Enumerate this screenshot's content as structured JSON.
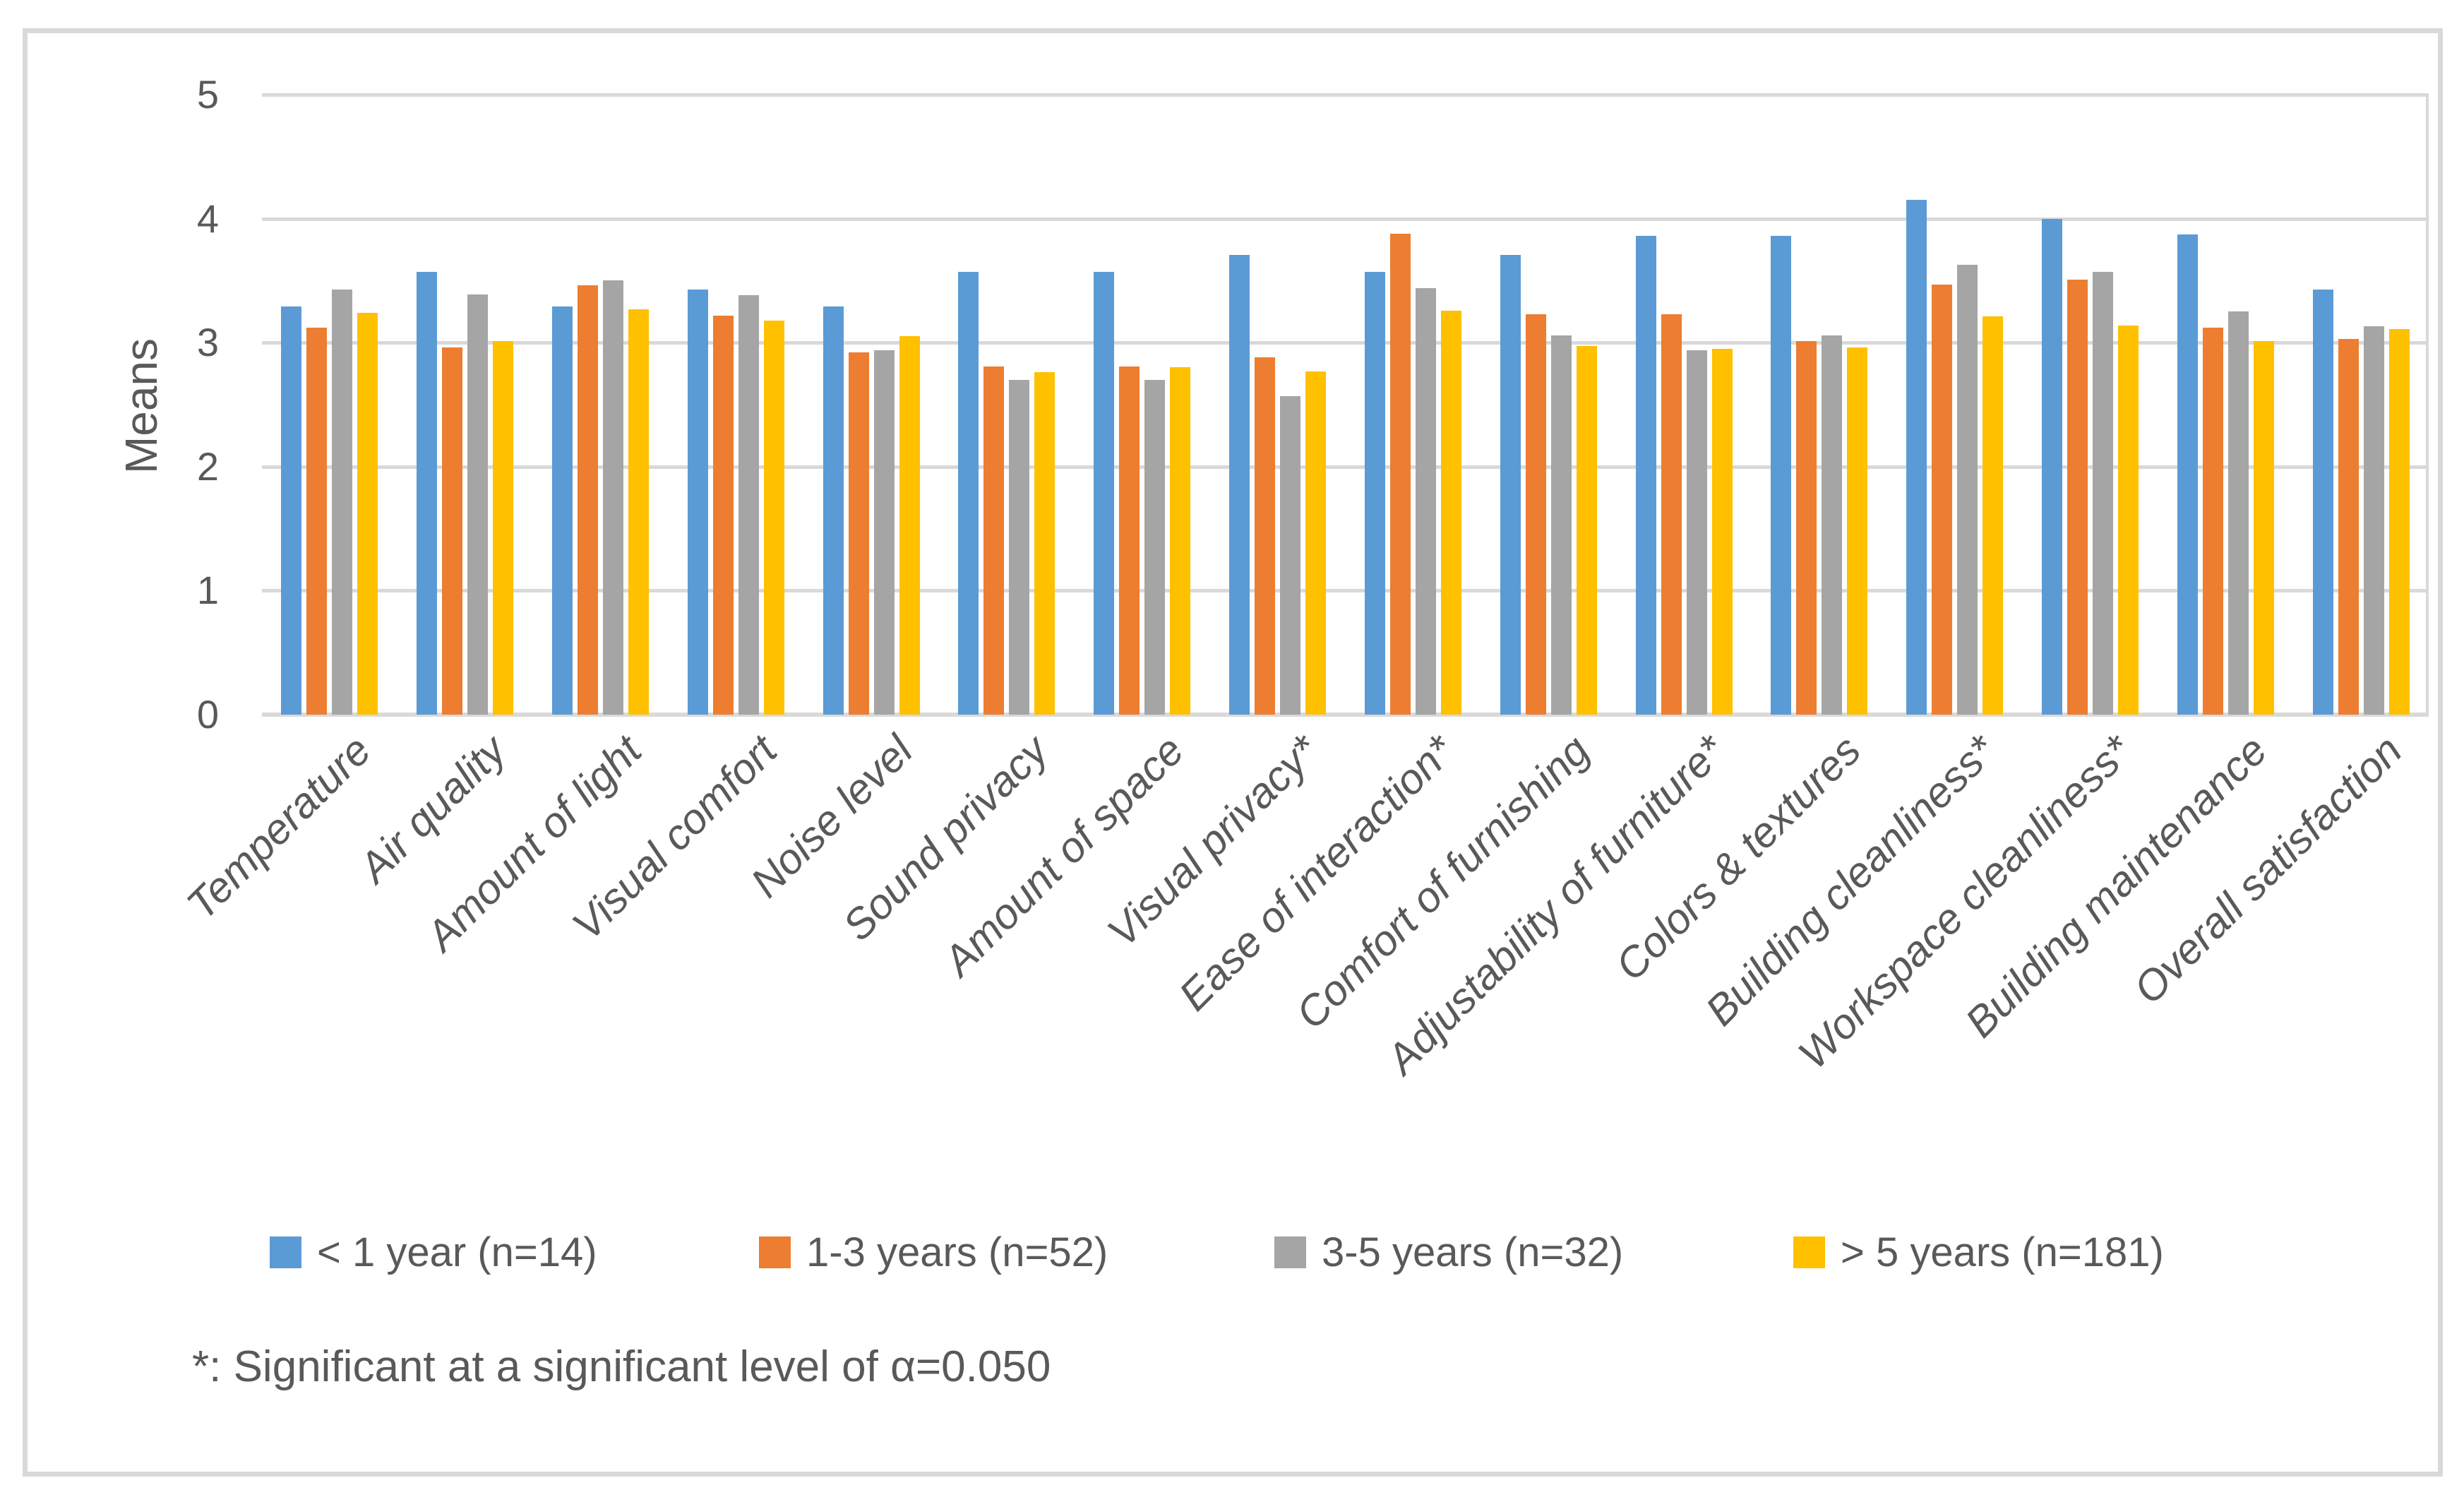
{
  "chart_data": {
    "type": "bar",
    "title": "",
    "ylabel": "Means",
    "xlabel": "",
    "ylim": [
      0,
      5
    ],
    "yticks": [
      "0",
      "1",
      "2",
      "3",
      "4",
      "5"
    ],
    "grid": true,
    "legend_position": "bottom",
    "categories": [
      "Temperature",
      "Air quality",
      "Amount of light",
      "Visual comfort",
      "Noise level",
      "Sound privacy",
      "Amount of space",
      "Visual privacy*",
      "Ease of interaction*",
      "Comfort of furnishing",
      "Adjustability of furniture*",
      "Colors & textures",
      "Building cleanliness*",
      "Workspace cleanliness*",
      "Building maintenance",
      "Overall satisfaction"
    ],
    "series": [
      {
        "name": "< 1 year (n=14)",
        "color": "#5B9BD5",
        "values": [
          3.29,
          3.57,
          3.29,
          3.43,
          3.29,
          3.57,
          3.57,
          3.71,
          3.57,
          3.71,
          3.86,
          3.86,
          4.15,
          4.0,
          3.87,
          3.43
        ]
      },
      {
        "name": "1-3 years (n=52)",
        "color": "#ED7D31",
        "values": [
          3.12,
          2.96,
          3.46,
          3.22,
          2.92,
          2.81,
          2.81,
          2.88,
          3.88,
          3.23,
          3.23,
          3.01,
          3.47,
          3.51,
          3.12,
          3.03
        ]
      },
      {
        "name": "3-5 years (n=32)",
        "color": "#A5A5A5",
        "values": [
          3.43,
          3.39,
          3.5,
          3.38,
          2.94,
          2.7,
          2.7,
          2.57,
          3.44,
          3.06,
          2.94,
          3.06,
          3.63,
          3.57,
          3.25,
          3.13
        ]
      },
      {
        "name": "> 5 years (n=181)",
        "color": "#FFC000",
        "values": [
          3.24,
          3.01,
          3.27,
          3.18,
          3.05,
          2.76,
          2.8,
          2.77,
          3.26,
          2.97,
          2.95,
          2.96,
          3.21,
          3.14,
          3.01,
          3.11
        ]
      }
    ]
  },
  "footnote": "*: Significant at a significant level of α=0.050",
  "colors": {
    "background": "#FFFFFF",
    "border": "#D9D9D9",
    "gridline": "#D9D9D9",
    "text": "#595959"
  }
}
